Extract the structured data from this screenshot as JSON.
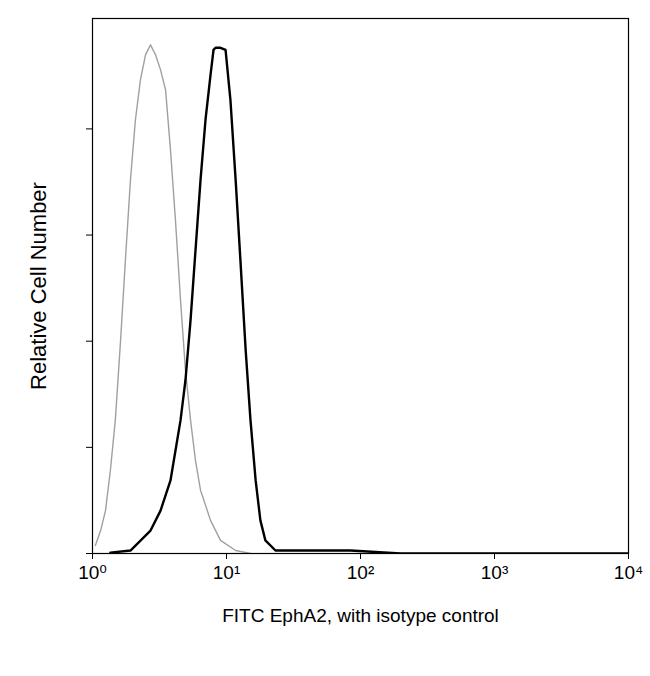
{
  "chart_data": {
    "type": "line",
    "x_label": "FITC EphA2, with isotype control",
    "y_label": "Relative Cell Number",
    "log": "x",
    "xlim": [
      1,
      10000
    ],
    "xticks": [
      {
        "value": 1,
        "label": "10⁰"
      },
      {
        "value": 10,
        "label": "10¹"
      },
      {
        "value": 100,
        "label": "10²"
      },
      {
        "value": 1000,
        "label": "10³"
      },
      {
        "value": 10000,
        "label": "10⁴"
      }
    ],
    "ylim": [
      0,
      126
    ],
    "yticks": [
      0,
      25,
      50,
      75,
      100
    ],
    "tick_labels": "x",
    "series": [
      {
        "color": "#a0a0a0",
        "line_style": "solid",
        "x": [
          1.05,
          1.15,
          1.25,
          1.36,
          1.48,
          1.62,
          1.76,
          1.92,
          2.09,
          2.28,
          2.49,
          2.71,
          2.95,
          3.22,
          3.51,
          3.82,
          4.16,
          4.54,
          4.94,
          5.39,
          5.87,
          6.4,
          7.6,
          9.02,
          11.7,
          15.1
        ],
        "values": [
          1.9,
          5.4,
          10.1,
          19.6,
          31.4,
          50.2,
          69.1,
          88.0,
          102.1,
          111.6,
          117.5,
          119.8,
          117.5,
          113.9,
          109.2,
          95.0,
          78.5,
          59.6,
          43.2,
          31.4,
          21.9,
          14.9,
          7.8,
          3.1,
          0.7,
          0
        ]
      },
      {
        "color": "#000000",
        "line_style": "solid",
        "x": [
          1.36,
          1.92,
          2.71,
          3.22,
          3.82,
          4.54,
          4.94,
          5.39,
          5.87,
          6.4,
          6.97,
          7.6,
          8.0,
          8.28,
          9.02,
          9.84,
          10.7,
          11.7,
          12.7,
          13.9,
          15.1,
          16.5,
          17.9,
          19.5,
          23.2,
          35.7,
          84.2,
          199,
          10000
        ],
        "values": [
          0.2,
          0.7,
          5.4,
          10.1,
          17.2,
          31.4,
          40.8,
          54.9,
          71.4,
          88.0,
          102.1,
          112.7,
          118.6,
          119.1,
          119.1,
          118.6,
          106.8,
          88.0,
          69.1,
          47.9,
          31.4,
          17.2,
          7.8,
          3.1,
          0.7,
          0.7,
          0.7,
          0,
          0
        ]
      }
    ]
  }
}
